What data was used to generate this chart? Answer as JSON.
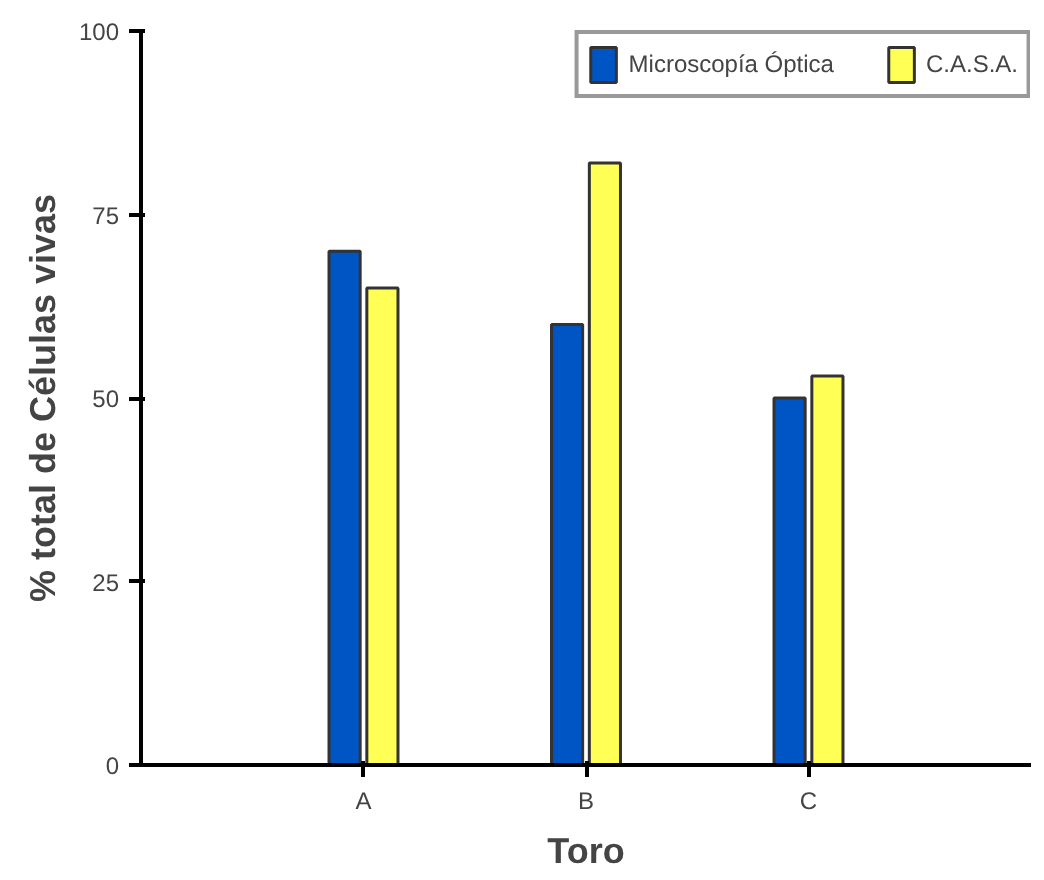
{
  "chart_data": {
    "type": "bar",
    "xlabel": "Toro",
    "ylabel": "% total de Células vivas",
    "categories": [
      "A",
      "B",
      "C"
    ],
    "series": [
      {
        "name": "Microscopía Óptica",
        "color": "#0055c4",
        "values": [
          70,
          60,
          50
        ]
      },
      {
        "name": "C.A.S.A.",
        "color": "#ffff55",
        "values": [
          65,
          82,
          53
        ]
      }
    ],
    "ylim": [
      0,
      100
    ],
    "yticks": [
      0,
      25,
      50,
      75,
      100
    ],
    "grid": false,
    "legend": "top right"
  }
}
